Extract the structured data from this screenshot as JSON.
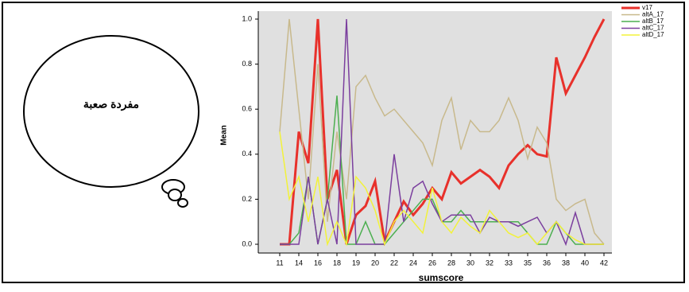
{
  "chart_data": {
    "type": "line",
    "annotations": [
      "مفردة صعبة"
    ],
    "x_label": "sumscore",
    "y_label": "Mean",
    "categories": [
      "11",
      null,
      "14",
      null,
      "16",
      null,
      "18",
      null,
      "19",
      null,
      "20",
      null,
      "22",
      null,
      "24",
      null,
      "26",
      null,
      "28",
      null,
      "30",
      null,
      "32",
      null,
      "33",
      null,
      "35",
      null,
      "36",
      null,
      "38",
      null,
      "40",
      null,
      "42"
    ],
    "series": [
      {
        "name": "v17",
        "color": "#e8312b",
        "values": [
          0,
          0,
          0.5,
          0.36,
          1.0,
          0.2,
          0.33,
          0,
          0.13,
          0.17,
          0.28,
          0.01,
          0.1,
          0.19,
          0.13,
          0.18,
          0.25,
          0.2,
          0.32,
          0.27,
          0.3,
          0.33,
          0.3,
          0.25,
          0.35,
          0.4,
          0.44,
          0.4,
          0.39,
          0.83,
          0.67,
          0.75,
          0.83,
          0.92,
          1.0
        ]
      },
      {
        "name": "altA_17",
        "color": "#c8b98c",
        "values": [
          0.5,
          1.0,
          0.6,
          0.2,
          0.8,
          0.1,
          0.5,
          0.2,
          0.7,
          0.75,
          0.65,
          0.57,
          0.6,
          0.55,
          0.5,
          0.45,
          0.35,
          0.55,
          0.65,
          0.42,
          0.55,
          0.5,
          0.5,
          0.55,
          0.65,
          0.55,
          0.38,
          0.52,
          0.45,
          0.2,
          0.15,
          0.18,
          0.2,
          0.05,
          0.0
        ]
      },
      {
        "name": "altB_17",
        "color": "#4caf50",
        "values": [
          0,
          0,
          0.05,
          0.3,
          0,
          0.2,
          0.66,
          0,
          0,
          0.1,
          0,
          0,
          0.05,
          0.1,
          0.15,
          0.2,
          0.2,
          0.1,
          0.1,
          0.15,
          0.1,
          0.1,
          0.1,
          0.1,
          0.1,
          0.1,
          0.05,
          0,
          0,
          0.1,
          0.05,
          0,
          0,
          0,
          0
        ]
      },
      {
        "name": "altC_17",
        "color": "#7b3f9e",
        "values": [
          0,
          0,
          0,
          0.3,
          0,
          0.2,
          0,
          1.0,
          0,
          0,
          0,
          0,
          0.4,
          0.1,
          0.25,
          0.28,
          0.18,
          0.1,
          0.13,
          0.13,
          0.13,
          0.05,
          0.12,
          0.1,
          0.1,
          0.08,
          0.1,
          0.12,
          0.05,
          0.1,
          0,
          0.14,
          0,
          0,
          0
        ]
      },
      {
        "name": "altD_17",
        "color": "#f2f23a",
        "values": [
          0.5,
          0.2,
          0.3,
          0.1,
          0.3,
          0,
          0.1,
          0,
          0.3,
          0.25,
          0.15,
          0,
          0.1,
          0.15,
          0.1,
          0.05,
          0.25,
          0.1,
          0.05,
          0.12,
          0.08,
          0.05,
          0.15,
          0.1,
          0.05,
          0.03,
          0.05,
          0,
          0.05,
          0.1,
          0.05,
          0.02,
          0,
          0,
          0
        ]
      }
    ],
    "ylim": [
      0,
      1
    ],
    "yticks": [
      {
        "value": 0,
        "label": "0.0"
      },
      {
        "value": 0.2,
        "label": "0.2"
      },
      {
        "value": 0.4,
        "label": "0.4"
      },
      {
        "value": 0.6,
        "label": "0.6"
      },
      {
        "value": 0.8,
        "label": "0.8"
      },
      {
        "value": 1,
        "label": "1.0"
      }
    ]
  }
}
